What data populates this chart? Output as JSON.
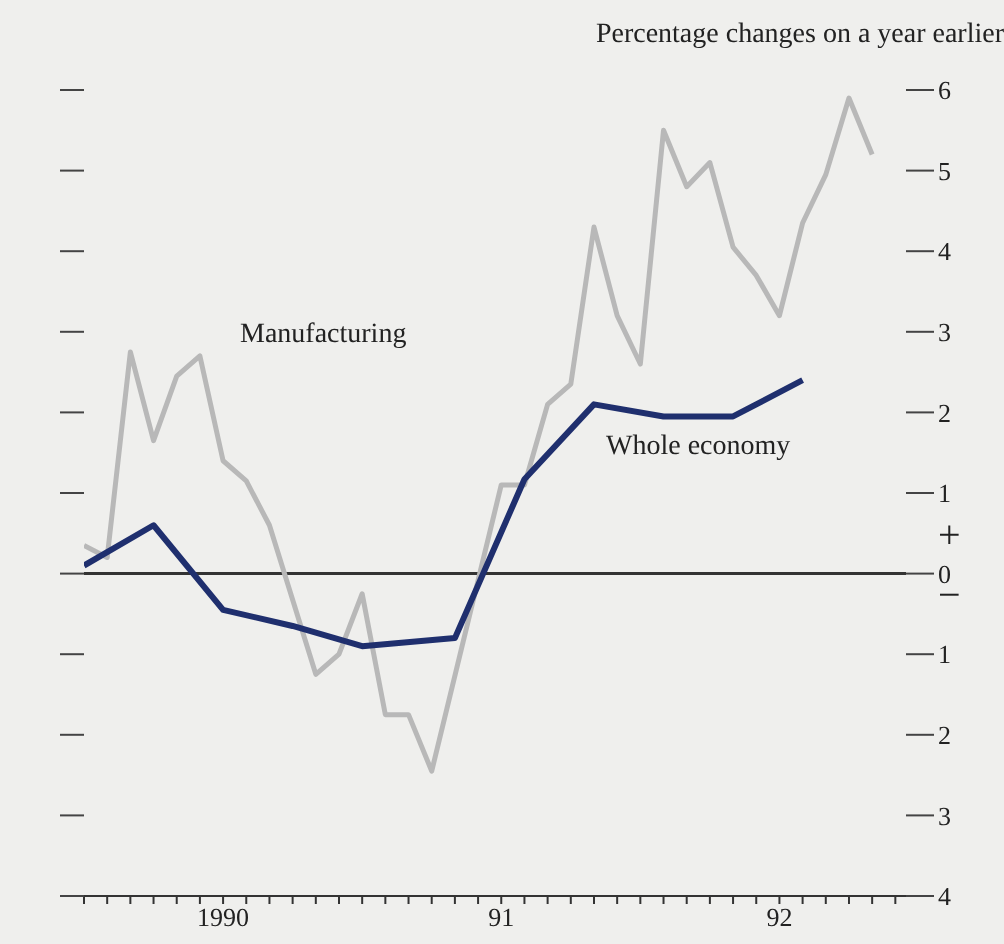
{
  "chart_data": {
    "type": "line",
    "ylabel": "Percentage changes on a year earlier",
    "xlim": [
      "1990-01",
      "1992-12-15"
    ],
    "xticks": [
      {
        "value": "1990-01",
        "label": null
      },
      {
        "value": "1990-02",
        "label": null
      },
      {
        "value": "1990-03",
        "label": null
      },
      {
        "value": "1990-04",
        "label": null
      },
      {
        "value": "1990-05",
        "label": null
      },
      {
        "value": "1990-06",
        "label": null
      },
      {
        "value": "1990-07",
        "label": "1990"
      },
      {
        "value": "1990-08",
        "label": null
      },
      {
        "value": "1990-09",
        "label": null
      },
      {
        "value": "1990-10",
        "label": null
      },
      {
        "value": "1990-11",
        "label": null
      },
      {
        "value": "1990-12",
        "label": null
      },
      {
        "value": "1991-01",
        "label": null
      },
      {
        "value": "1991-02",
        "label": null
      },
      {
        "value": "1991-03",
        "label": null
      },
      {
        "value": "1991-04",
        "label": null
      },
      {
        "value": "1991-05",
        "label": null
      },
      {
        "value": "1991-06",
        "label": null
      },
      {
        "value": "1991-07",
        "label": "91"
      },
      {
        "value": "1991-08",
        "label": null
      },
      {
        "value": "1991-09",
        "label": null
      },
      {
        "value": "1991-10",
        "label": null
      },
      {
        "value": "1991-11",
        "label": null
      },
      {
        "value": "1991-12",
        "label": null
      },
      {
        "value": "1992-01",
        "label": null
      },
      {
        "value": "1992-02",
        "label": null
      },
      {
        "value": "1992-03",
        "label": null
      },
      {
        "value": "1992-04",
        "label": null
      },
      {
        "value": "1992-05",
        "label": null
      },
      {
        "value": "1992-06",
        "label": null
      },
      {
        "value": "1992-07",
        "label": "92"
      },
      {
        "value": "1992-08",
        "label": null
      },
      {
        "value": "1992-09",
        "label": null
      },
      {
        "value": "1992-10",
        "label": null
      },
      {
        "value": "1992-11",
        "label": null
      },
      {
        "value": "1992-12",
        "label": null
      }
    ],
    "ylim": [
      -4,
      6
    ],
    "yticks": [
      {
        "value": -4,
        "label": "4"
      },
      {
        "value": -3,
        "label": "3"
      },
      {
        "value": -2,
        "label": "2"
      },
      {
        "value": -1,
        "label": "1"
      },
      0,
      1,
      2,
      3,
      4,
      5,
      6
    ],
    "grid": false,
    "legend": false,
    "marker": "none",
    "line_style": "solid",
    "annotations": [
      "+",
      "−"
    ],
    "ref_lines": [
      {
        "axis": "y",
        "value": 0,
        "color": "#333333"
      }
    ],
    "series": [
      {
        "name": "Manufacturing",
        "color": "#b8b8b8",
        "x": [
          "1990-01",
          "1990-02",
          "1990-03",
          "1990-04",
          "1990-05",
          "1990-06",
          "1990-07",
          "1990-08",
          "1990-09",
          "1990-11",
          "1990-12",
          "1991-01",
          "1991-02",
          "1991-03",
          "1991-04",
          "1991-07",
          "1991-08",
          "1991-09",
          "1991-10",
          "1991-11",
          "1991-12",
          "1992-01",
          "1992-02",
          "1992-03",
          "1992-04",
          "1992-05",
          "1992-06",
          "1992-07",
          "1992-08",
          "1992-09",
          "1992-10",
          "1992-11"
        ],
        "values": [
          0.35,
          0.2,
          2.75,
          1.65,
          2.45,
          2.7,
          1.4,
          1.15,
          0.6,
          -1.25,
          -1.0,
          -0.25,
          -1.75,
          -1.75,
          -2.45,
          1.1,
          1.1,
          2.1,
          2.35,
          4.3,
          3.2,
          2.6,
          5.5,
          4.8,
          5.1,
          4.05,
          3.7,
          3.2,
          4.35,
          4.95,
          5.9,
          5.2
        ]
      },
      {
        "name": "Whole economy",
        "color": "#1f2f6e",
        "x": [
          "1990-01",
          "1990-04",
          "1990-07",
          "1990-10",
          "1991-01",
          "1991-05",
          "1991-08",
          "1991-11",
          "1992-02",
          "1992-05",
          "1992-08"
        ],
        "values": [
          0.1,
          0.6,
          -0.45,
          -0.65,
          -0.9,
          -0.8,
          1.17,
          2.1,
          1.95,
          1.95,
          2.4
        ]
      }
    ]
  }
}
